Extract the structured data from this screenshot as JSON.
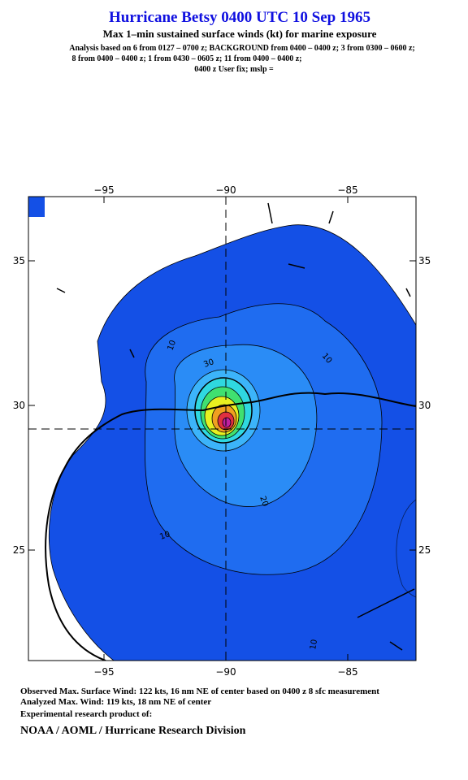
{
  "header": {
    "title": "Hurricane Betsy 0400 UTC 10 Sep 1965",
    "subtitle": "Max 1–min sustained surface winds (kt) for marine exposure",
    "analysis_lines": [
      "Analysis based on  6 from 0127 – 0700 z;  BACKGROUND from 0400 – 0400 z;  3 from 0300 – 0600 z;",
      "8 from 0400 – 0400 z;  1 from 0430 – 0605 z;  11 from 0400 – 0400 z;",
      "0400 z User fix; mslp ="
    ]
  },
  "map": {
    "x_ticks": [
      {
        "value": -95,
        "label": "−95"
      },
      {
        "value": -90,
        "label": "−90"
      },
      {
        "value": -85,
        "label": "−85"
      }
    ],
    "y_ticks": [
      25,
      30,
      35
    ],
    "contour_labels": [
      "10",
      "30",
      "10",
      "20",
      "10",
      "10"
    ]
  },
  "footer": {
    "lines": [
      "Observed Max. Surface Wind: 122 kts, 16 nm NE of center based on 0400 z 8 sfc measurement",
      "Analyzed Max. Wind: 119 kts, 18 nm NE of center",
      "Experimental research product of:"
    ],
    "credit": "NOAA / AOML / Hurricane Research Division"
  }
}
